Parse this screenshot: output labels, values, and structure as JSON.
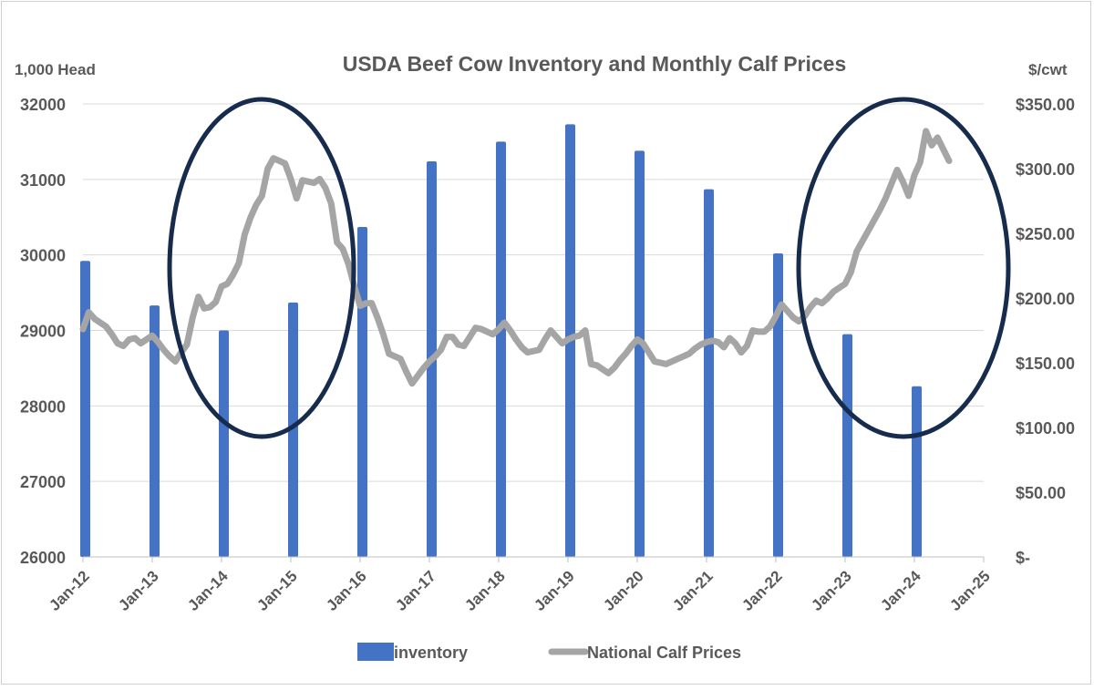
{
  "chart_data": {
    "type": "bar+line",
    "title": "USDA Beef Cow Inventory and Monthly Calf Prices",
    "ylabel_left": "1,000 Head",
    "ylabel_right": "$/cwt",
    "ylim_left": [
      26000,
      32000
    ],
    "yticks_left": [
      "26000",
      "27000",
      "28000",
      "29000",
      "30000",
      "31000",
      "32000"
    ],
    "ylim_right": [
      0,
      350
    ],
    "yticks_right": [
      "$-",
      "$50.00",
      "$100.00",
      "$150.00",
      "$200.00",
      "$250.00",
      "$300.00",
      "$350.00"
    ],
    "xlim": [
      "Jan-12",
      "Jan-25"
    ],
    "xticks": [
      "Jan-12",
      "Jan-13",
      "Jan-14",
      "Jan-15",
      "Jan-16",
      "Jan-17",
      "Jan-18",
      "Jan-19",
      "Jan-20",
      "Jan-21",
      "Jan-22",
      "Jan-23",
      "Jan-24",
      "Jan-25"
    ],
    "grid": "horizontal",
    "legend_placement": "bottom",
    "bar_series": {
      "name": "inventory",
      "axis": "left",
      "color": "#4472c4",
      "dates": [
        "Jan-12",
        "Jan-13",
        "Jan-14",
        "Jan-15",
        "Jan-16",
        "Jan-17",
        "Jan-18",
        "Jan-19",
        "Jan-20",
        "Jan-21",
        "Jan-22",
        "Jan-23",
        "Jan-24"
      ],
      "values": [
        29920,
        29330,
        29000,
        29370,
        30370,
        31240,
        31500,
        31730,
        31380,
        30870,
        30020,
        28950,
        28260
      ]
    },
    "line_series": {
      "name": "National Calf Prices",
      "axis": "right",
      "color": "#a5a5a5",
      "monthly_by_year": {
        "2012": [
          176,
          189,
          184,
          181,
          178,
          172,
          165,
          163,
          168,
          169,
          165,
          168
        ],
        "2013": [
          171,
          166,
          160,
          155,
          151,
          158,
          164,
          185,
          201,
          192,
          193,
          197
        ],
        "2014": [
          209,
          211,
          218,
          227,
          249,
          262,
          272,
          279,
          300,
          308,
          306,
          304
        ],
        "2015": [
          292,
          277,
          291,
          290,
          289,
          292,
          285,
          273,
          243,
          238,
          226,
          209
        ],
        "2016": [
          194,
          196,
          196,
          185,
          172,
          157,
          155,
          153,
          143,
          134,
          140,
          146
        ],
        "2017": [
          151,
          155,
          160,
          170,
          170,
          164,
          163,
          170,
          177,
          176,
          174,
          172
        ],
        "2018": [
          176,
          181,
          175,
          168,
          162,
          158,
          159,
          160,
          168,
          175,
          170,
          165
        ],
        "2019": [
          168,
          170,
          171,
          175,
          149,
          148,
          145,
          142,
          146,
          152,
          157,
          163
        ],
        "2020": [
          168,
          165,
          158,
          151,
          150,
          149,
          151,
          153,
          155,
          157,
          161,
          164
        ],
        "2021": [
          166,
          167,
          166,
          162,
          169,
          165,
          158,
          163,
          175,
          174,
          174,
          178
        ],
        "2022": [
          186,
          195,
          190,
          185,
          182,
          186,
          193,
          198,
          196,
          200,
          205,
          208
        ],
        "2023": [
          211,
          220,
          236,
          244,
          252,
          260,
          268,
          277,
          288,
          299,
          290,
          279
        ],
        "2024": [
          295,
          305,
          329,
          318,
          324,
          315,
          306
        ]
      }
    },
    "annotations": [
      {
        "type": "ellipse",
        "around": "Jan-14 to Jan-16 price peak",
        "color": "#172b4d"
      },
      {
        "type": "ellipse",
        "around": "Jan-23 to Jan-25 price peak",
        "color": "#172b4d"
      }
    ]
  }
}
